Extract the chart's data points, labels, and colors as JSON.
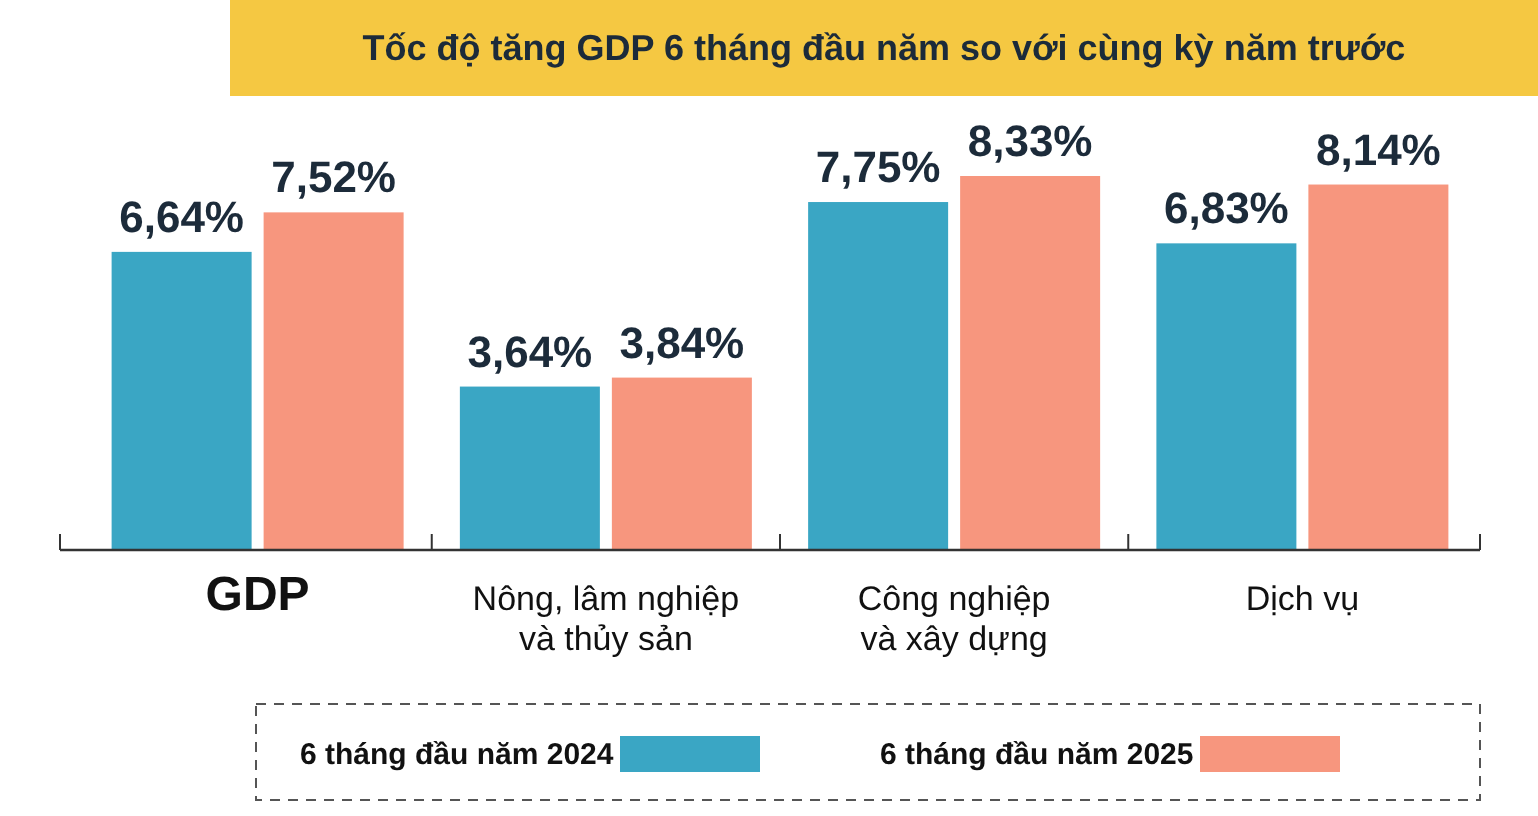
{
  "chart_data": {
    "type": "bar",
    "title": "Tốc độ tăng GDP 6 tháng đầu năm so với cùng kỳ năm trước",
    "categories": [
      "GDP",
      "Nông, lâm nghiệp\nvà thủy sản",
      "Công nghiệp\nvà xây dựng",
      "Dịch vụ"
    ],
    "series": [
      {
        "name": "6 tháng đầu năm 2024",
        "color": "#3aa6c4",
        "values": [
          6.64,
          3.64,
          7.75,
          6.83
        ],
        "value_labels": [
          "6,64%",
          "3,64%",
          "7,75%",
          "6,83%"
        ]
      },
      {
        "name": "6 tháng đầu năm 2025",
        "color": "#f7967e",
        "values": [
          7.52,
          3.84,
          8.33,
          8.14
        ],
        "value_labels": [
          "7,52%",
          "3,84%",
          "8,33%",
          "8,14%"
        ]
      }
    ],
    "legend": "bottom"
  }
}
